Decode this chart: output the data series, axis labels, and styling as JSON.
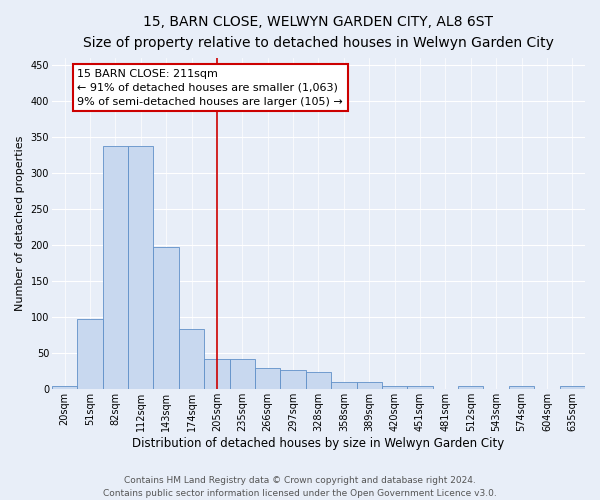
{
  "title": "15, BARN CLOSE, WELWYN GARDEN CITY, AL8 6ST",
  "subtitle": "Size of property relative to detached houses in Welwyn Garden City",
  "xlabel": "Distribution of detached houses by size in Welwyn Garden City",
  "ylabel": "Number of detached properties",
  "bin_labels": [
    "20sqm",
    "51sqm",
    "82sqm",
    "112sqm",
    "143sqm",
    "174sqm",
    "205sqm",
    "235sqm",
    "266sqm",
    "297sqm",
    "328sqm",
    "358sqm",
    "389sqm",
    "420sqm",
    "451sqm",
    "481sqm",
    "512sqm",
    "543sqm",
    "574sqm",
    "604sqm",
    "635sqm"
  ],
  "bar_heights": [
    5,
    97,
    338,
    337,
    197,
    84,
    42,
    42,
    29,
    27,
    24,
    10,
    10,
    5,
    5,
    0,
    5,
    0,
    5,
    0,
    4
  ],
  "bar_color": "#c8d8ef",
  "bar_edge_color": "#6090c8",
  "vline_x": 6.0,
  "annotation_text": "15 BARN CLOSE: 211sqm\n← 91% of detached houses are smaller (1,063)\n9% of semi-detached houses are larger (105) →",
  "annotation_box_facecolor": "#ffffff",
  "annotation_box_edgecolor": "#cc0000",
  "vline_color": "#cc0000",
  "ylim": [
    0,
    460
  ],
  "yticks": [
    0,
    50,
    100,
    150,
    200,
    250,
    300,
    350,
    400,
    450
  ],
  "bg_color": "#e8eef8",
  "grid_color": "#d0d8ea",
  "title_fontsize": 10,
  "subtitle_fontsize": 9,
  "xlabel_fontsize": 8.5,
  "ylabel_fontsize": 8,
  "tick_fontsize": 7,
  "footer_fontsize": 6.5,
  "annotation_fontsize": 8,
  "footer": "Contains HM Land Registry data © Crown copyright and database right 2024.\nContains public sector information licensed under the Open Government Licence v3.0."
}
